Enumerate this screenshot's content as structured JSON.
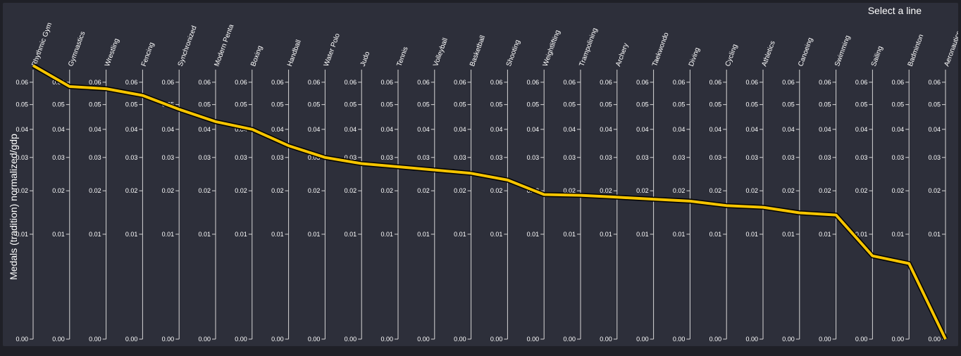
{
  "header": {
    "select_label": "Select a line"
  },
  "chart_data": {
    "type": "line",
    "ylabel": "Medals (tradition) normalized/gdp",
    "ylim": [
      0,
      0.066
    ],
    "y_scale": "sqrt",
    "tick_values": [
      0,
      0.01,
      0.02,
      0.03,
      0.04,
      0.05,
      0.06
    ],
    "tick_labels": [
      "0.00",
      "0.01",
      "0.02",
      "0.03",
      "0.04",
      "0.05",
      "0.06"
    ],
    "categories": [
      "Rhythmic Gym",
      "Gymnastics",
      "Wrestling",
      "Fencing",
      "Synchronized",
      "Modern Penta",
      "Boxing",
      "Handball",
      "Water Polo",
      "Judo",
      "Tennis",
      "Volleyball",
      "Basketball",
      "Shooting",
      "Weightlifting",
      "Trampolining",
      "Archery",
      "Taekwondo",
      "Diving",
      "Cycling",
      "Athletics",
      "Canoeing",
      "Swimming",
      "Sailing",
      "Badminton",
      "Aeronautics"
    ],
    "series": [
      {
        "color": "#f5c400",
        "values": [
          0.068,
          0.058,
          0.057,
          0.054,
          0.048,
          0.043,
          0.04,
          0.034,
          0.03,
          0.028,
          0.027,
          0.026,
          0.025,
          0.023,
          0.019,
          0.0188,
          0.0183,
          0.0178,
          0.0173,
          0.0162,
          0.0158,
          0.0145,
          0.014,
          0.0063,
          0.0052,
          0.0
        ]
      }
    ]
  }
}
